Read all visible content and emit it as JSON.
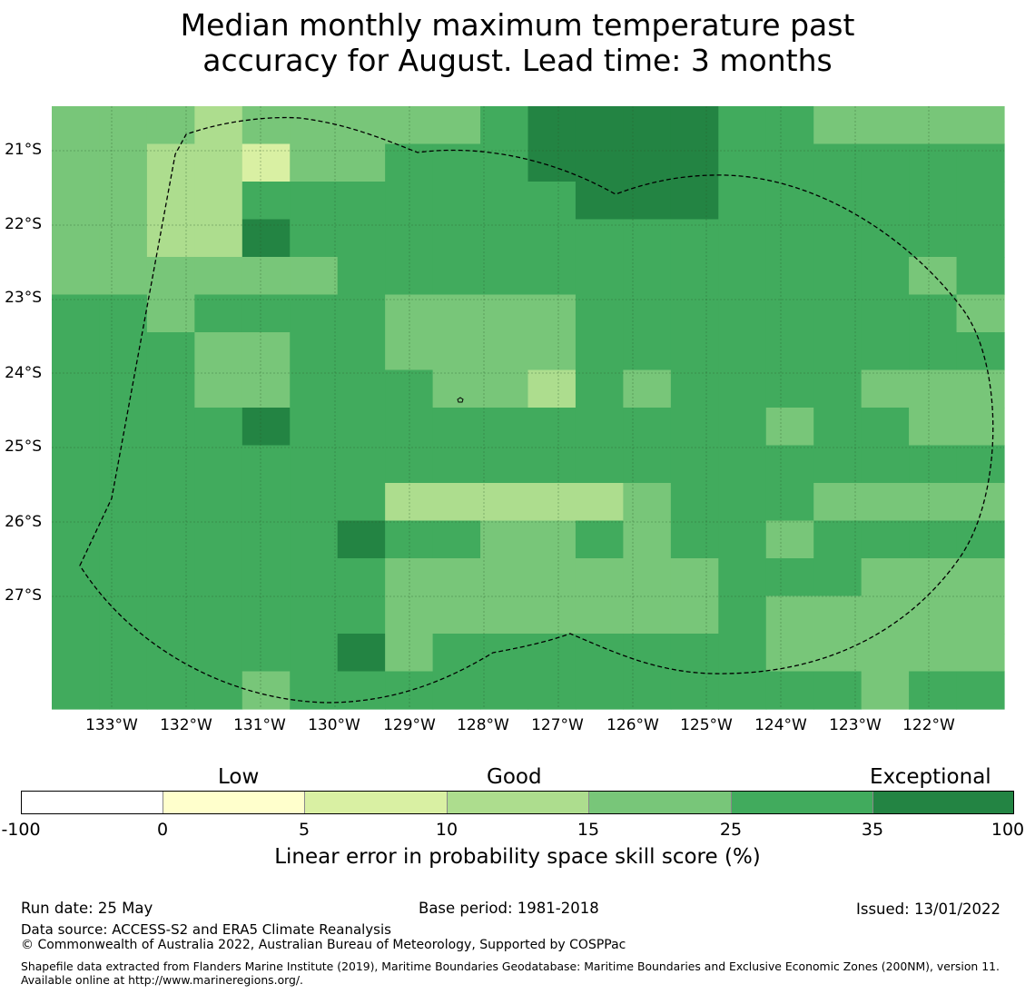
{
  "title": {
    "line1": "Median monthly maximum temperature past",
    "line2": "accuracy for August. Lead time: 3 months"
  },
  "map": {
    "lat_labels": [
      "21°S",
      "22°S",
      "23°S",
      "24°S",
      "25°S",
      "26°S",
      "27°S"
    ],
    "lon_labels": [
      "133°W",
      "132°W",
      "131°W",
      "130°W",
      "129°W",
      "128°W",
      "127°W",
      "126°W",
      "125°W",
      "124°W",
      "123°W",
      "122°W"
    ],
    "grid_rows": [
      "44434444456666554444",
      "44332445556666555555",
      "44335555555666555555",
      "44336555555555555555",
      "44444455555555555545",
      "55455554444555555554",
      "55544554444555555555",
      "55544555443545555444",
      "55556555555555545544",
      "55555555555555555555",
      "55555553333345554444",
      "55555565544545545555",
      "55555554444444555444",
      "55555554444444544444",
      "55555564555555544444",
      "55554555555555555455"
    ],
    "class_colors": {
      "1": "#ffffcc",
      "2": "#d9f0a3",
      "3": "#addd8e",
      "4": "#78c679",
      "5": "#41ab5d",
      "6": "#238443"
    }
  },
  "colorbar": {
    "categories": [
      "Low",
      "Good",
      "Exceptional"
    ],
    "ticks": [
      "-100",
      "0",
      "5",
      "10",
      "15",
      "25",
      "35",
      "100"
    ],
    "colors": [
      "#ffffff",
      "#ffffcc",
      "#d9f0a3",
      "#addd8e",
      "#78c679",
      "#41ab5d",
      "#238443"
    ],
    "title": "Linear error in probability space skill score (%)"
  },
  "footer": {
    "run_date": "Run date: 25 May",
    "base_period": "Base period: 1981-2018",
    "issued": "Issued: 13/01/2022",
    "data_source": "Data source: ACCESS-S2 and ERA5 Climate Reanalysis",
    "copyright": "© Commonwealth of Australia 2022, Australian Bureau of Meteorology, Supported by COSPPac",
    "shapefile": "Shapefile data extracted from Flanders Marine Institute (2019), Maritime Boundaries Geodatabase: Maritime Boundaries and Exclusive Economic Zones (200NM), version 11. Available online at http://www.marineregions.org/."
  }
}
